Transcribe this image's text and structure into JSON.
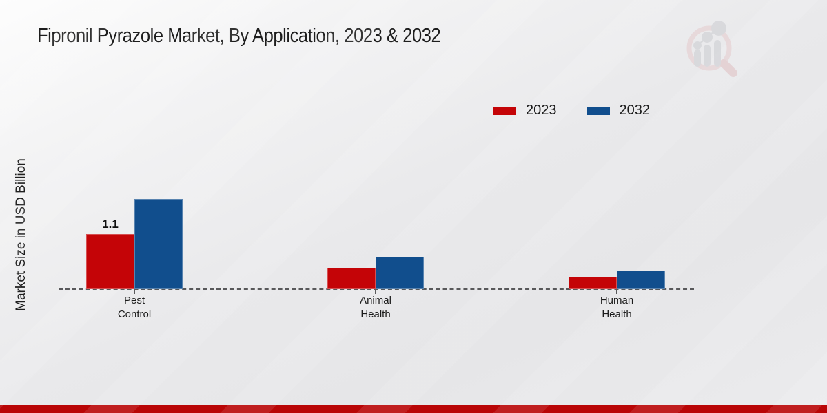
{
  "header": {
    "title": "Fipronil Pyrazole Market, By Application, 2023 & 2032"
  },
  "y_axis": {
    "label": "Market Size in USD Billion"
  },
  "legend": [
    {
      "label": "2023",
      "color": "#c40407"
    },
    {
      "label": "2032",
      "color": "#114e8d"
    }
  ],
  "chart_data": {
    "type": "bar",
    "title": "Fipronil Pyrazole Market, By Application, 2023 & 2032",
    "ylabel": "Market Size in USD Billion",
    "categories": [
      "Pest Control",
      "Animal Health",
      "Human Health"
    ],
    "series": [
      {
        "name": "2023",
        "color": "#c40407",
        "values": [
          1.1,
          0.42,
          0.25
        ],
        "point_labels": [
          "1.1",
          "",
          ""
        ]
      },
      {
        "name": "2032",
        "color": "#114e8d",
        "values": [
          1.8,
          0.65,
          0.37
        ],
        "point_labels": [
          "",
          "",
          ""
        ]
      }
    ],
    "ylim": [
      0,
      2.0
    ],
    "grid": false,
    "legend_position": "top-right",
    "baseline_style": "dashed"
  },
  "footer": {
    "bar_color": "#b90506"
  },
  "watermark": {
    "name": "market-research-magnifier-logo",
    "ring_color": "#e5cbcd",
    "bar_color": "#cbccd0"
  }
}
